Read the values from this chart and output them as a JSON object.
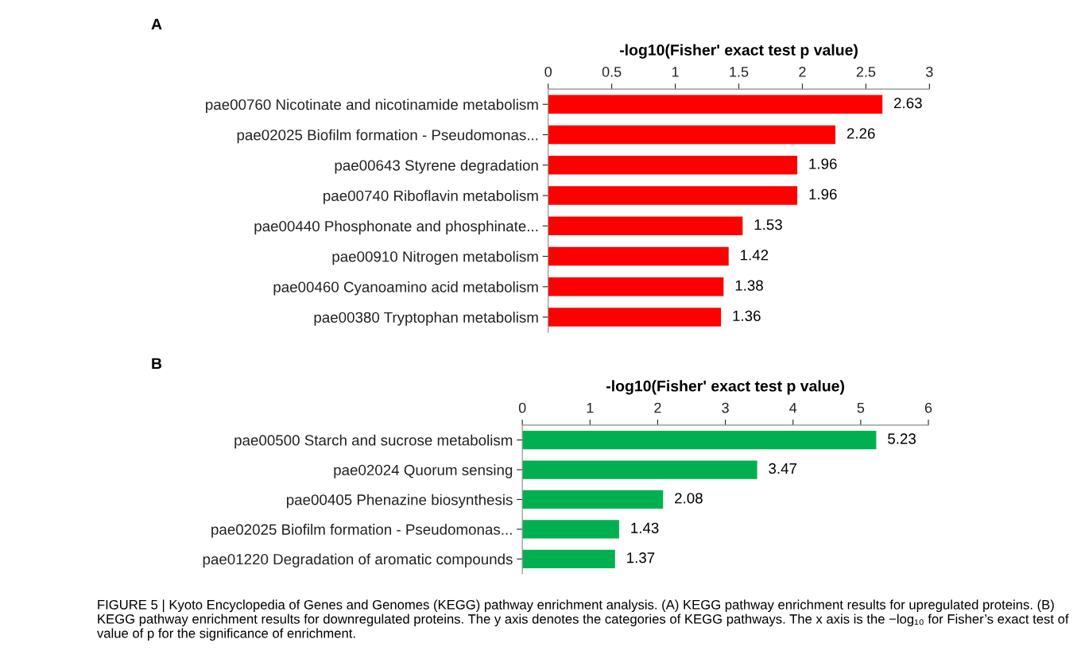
{
  "chart_data": [
    {
      "type": "bar",
      "orientation": "horizontal",
      "title": "A",
      "xlabel": "-log10(Fisher' exact test p value)",
      "color": "#ff0000",
      "categories": [
        "pae00760 Nicotinate and nicotinamide metabolism",
        "pae02025 Biofilm formation - Pseudomonas...",
        "pae00643 Styrene degradation",
        "pae00740 Riboflavin metabolism",
        "pae00440 Phosphonate and phosphinate...",
        "pae00910 Nitrogen metabolism",
        "pae00460 Cyanoamino acid metabolism",
        "pae00380 Tryptophan metabolism"
      ],
      "values": [
        2.63,
        2.26,
        1.96,
        1.96,
        1.53,
        1.42,
        1.38,
        1.36
      ],
      "xlim": [
        0,
        3
      ],
      "xticks": [
        0,
        0.5,
        1,
        1.5,
        2,
        2.5,
        3
      ],
      "data_labels": true,
      "grid": false,
      "legend": false
    },
    {
      "type": "bar",
      "orientation": "horizontal",
      "title": "B",
      "xlabel": "-log10(Fisher' exact test p value)",
      "color": "#00b050",
      "categories": [
        "pae00500 Starch and sucrose metabolism",
        "pae02024 Quorum sensing",
        "pae00405 Phenazine biosynthesis",
        "pae02025 Biofilm formation - Pseudomonas...",
        "pae01220 Degradation of aromatic compounds"
      ],
      "values": [
        5.23,
        3.47,
        2.08,
        1.43,
        1.37
      ],
      "xlim": [
        0,
        6
      ],
      "xticks": [
        0,
        1,
        2,
        3,
        4,
        5,
        6
      ],
      "data_labels": true,
      "grid": false,
      "legend": false,
      "annotations": [
        "FIGURE 5 | Kyoto Encyclopedia of Genes and Genomes (KEGG) pathway enrichment analysis. (A) KEGG pathway enrichment results for upregulated proteins. (B) KEGG pathway enrichment results for downregulated proteins. The y axis denotes the categories of KEGG pathways. The x axis is the −log₁₀ for Fisher’s exact test of value of p for the significance of enrichment."
      ]
    }
  ]
}
